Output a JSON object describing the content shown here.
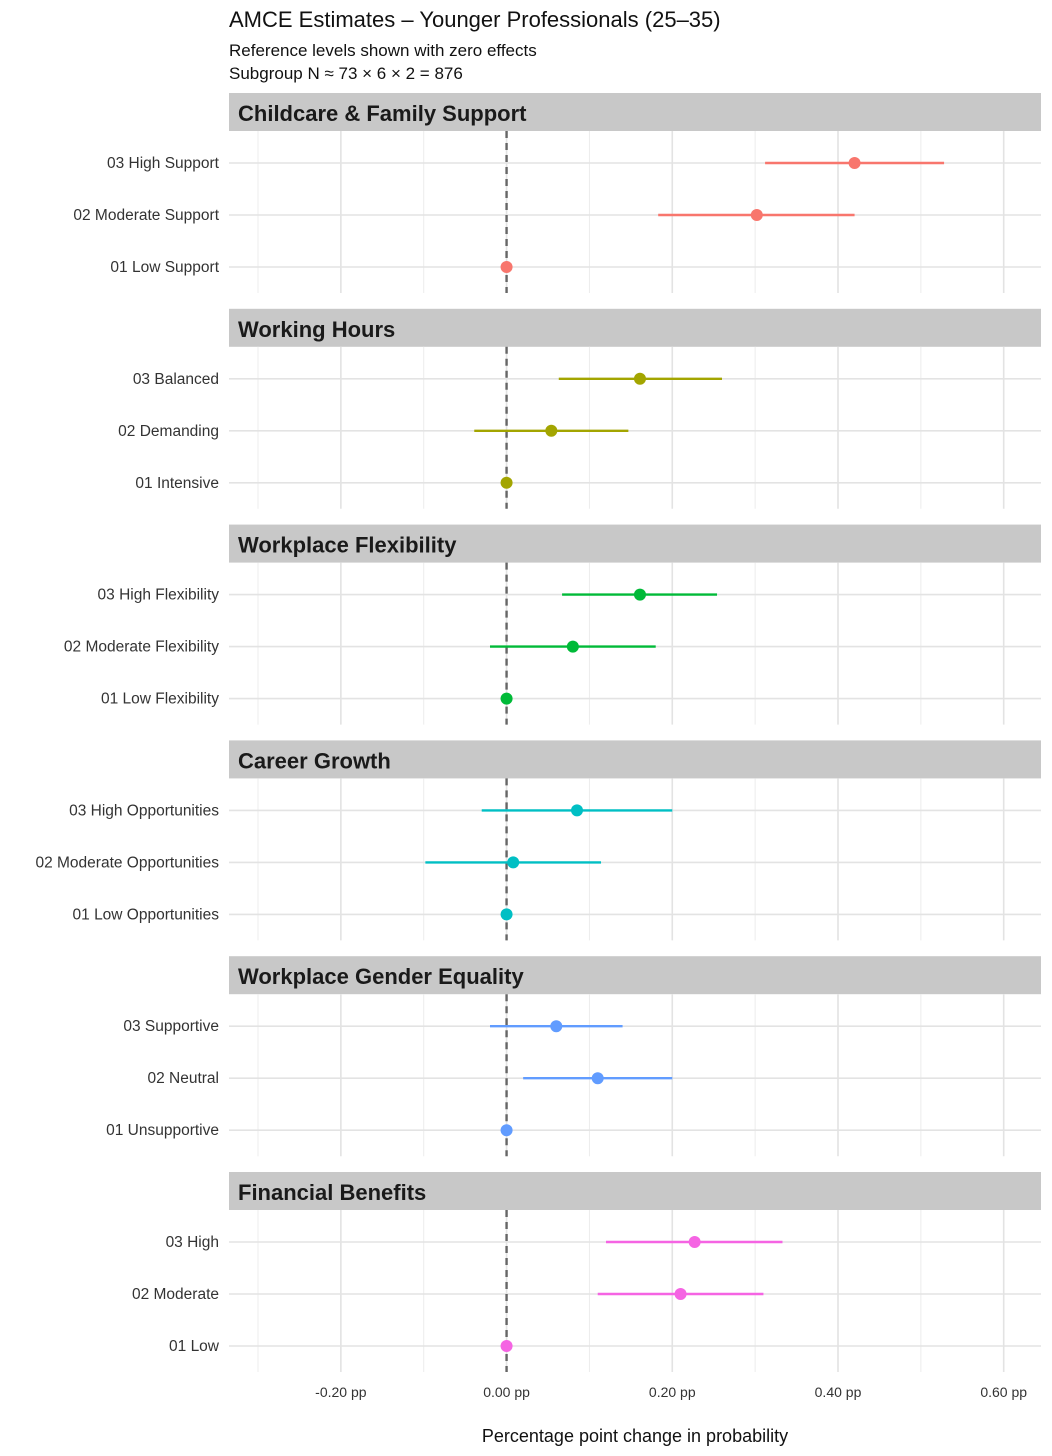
{
  "title": "AMCE Estimates – Younger Professionals (25–35)",
  "subtitle_lines": [
    "Reference levels shown with zero effects",
    "Subgroup N ≈ 73 × 6 × 2 = 876"
  ],
  "chart_data": {
    "type": "dot-and-whisker",
    "xlabel": "Percentage point change in probability",
    "xlim": [
      -0.335,
      0.645
    ],
    "x_ticks": [
      -0.2,
      0.0,
      0.2,
      0.4,
      0.6
    ],
    "x_tick_labels": [
      "-0.20 pp",
      "0.00 pp",
      "0.20 pp",
      "0.40 pp",
      "0.60 pp"
    ],
    "reference_line": 0,
    "grid": true,
    "panels": [
      {
        "name": "Childcare & Family Support",
        "color": "#F8766D",
        "levels": [
          {
            "label": "03 High Support",
            "estimate": 0.42,
            "low": 0.312,
            "high": 0.528
          },
          {
            "label": "02 Moderate Support",
            "estimate": 0.302,
            "low": 0.183,
            "high": 0.42
          },
          {
            "label": "01 Low Support",
            "estimate": 0.0,
            "low": 0.0,
            "high": 0.0
          }
        ]
      },
      {
        "name": "Working Hours",
        "color": "#A3A500",
        "levels": [
          {
            "label": "03 Balanced",
            "estimate": 0.161,
            "low": 0.063,
            "high": 0.26
          },
          {
            "label": "02 Demanding",
            "estimate": 0.054,
            "low": -0.039,
            "high": 0.147
          },
          {
            "label": "01 Intensive",
            "estimate": 0.0,
            "low": 0.0,
            "high": 0.0
          }
        ]
      },
      {
        "name": "Workplace Flexibility",
        "color": "#00BA38",
        "levels": [
          {
            "label": "03 High Flexibility",
            "estimate": 0.161,
            "low": 0.067,
            "high": 0.254
          },
          {
            "label": "02 Moderate Flexibility",
            "estimate": 0.08,
            "low": -0.02,
            "high": 0.18
          },
          {
            "label": "01 Low Flexibility",
            "estimate": 0.0,
            "low": 0.0,
            "high": 0.0
          }
        ]
      },
      {
        "name": "Career Growth",
        "color": "#00BFC4",
        "levels": [
          {
            "label": "03 High Opportunities",
            "estimate": 0.085,
            "low": -0.03,
            "high": 0.2
          },
          {
            "label": "02 Moderate Opportunities",
            "estimate": 0.008,
            "low": -0.098,
            "high": 0.114
          },
          {
            "label": "01 Low Opportunities",
            "estimate": 0.0,
            "low": 0.0,
            "high": 0.0
          }
        ]
      },
      {
        "name": "Workplace Gender Equality",
        "color": "#619CFF",
        "levels": [
          {
            "label": "03 Supportive",
            "estimate": 0.06,
            "low": -0.02,
            "high": 0.14
          },
          {
            "label": "02 Neutral",
            "estimate": 0.11,
            "low": 0.02,
            "high": 0.2
          },
          {
            "label": "01 Unsupportive",
            "estimate": 0.0,
            "low": 0.0,
            "high": 0.0
          }
        ]
      },
      {
        "name": "Financial Benefits",
        "color": "#F564E3",
        "levels": [
          {
            "label": "03 High",
            "estimate": 0.227,
            "low": 0.12,
            "high": 0.333
          },
          {
            "label": "02 Moderate",
            "estimate": 0.21,
            "low": 0.11,
            "high": 0.31
          },
          {
            "label": "01 Low",
            "estimate": 0.0,
            "low": 0.0,
            "high": 0.0
          }
        ]
      }
    ]
  }
}
